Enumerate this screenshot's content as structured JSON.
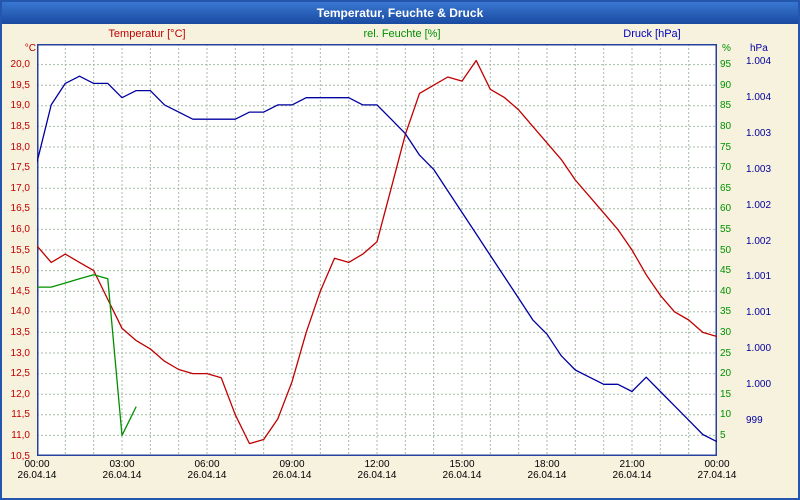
{
  "window": {
    "title": "Temperatur, Feuchte & Druck"
  },
  "header": {
    "temp_label": "Temperatur [°C]",
    "hum_label": "rel. Feuchte [%]",
    "pres_label": "Druck [hPa]",
    "temp_unit": "°C",
    "hum_unit": "%",
    "pres_unit": "hPa"
  },
  "colors": {
    "temperature": "#c00000",
    "humidity": "#009000",
    "pressure": "#0000a0",
    "titlebar": "#1a4aa0",
    "background": "#f7f2de",
    "plot_background": "#ffffff",
    "grid": "#a8bca8",
    "frame": "#26439b"
  },
  "chart_data": {
    "type": "line",
    "title": "Temperatur, Feuchte & Druck",
    "grid": true,
    "x_hours": [
      0,
      0.5,
      1,
      1.5,
      2,
      2.5,
      3,
      3.5,
      4,
      4.5,
      5,
      5.5,
      6,
      6.5,
      7,
      7.5,
      8,
      8.5,
      9,
      9.5,
      10,
      10.5,
      11,
      11.5,
      12,
      12.5,
      13,
      13.5,
      14,
      14.5,
      15,
      15.5,
      16,
      16.5,
      17,
      17.5,
      18,
      18.5,
      19,
      19.5,
      20,
      20.5,
      21,
      21.5,
      22,
      22.5,
      23,
      23.5,
      24
    ],
    "axis_ranges": {
      "temp": [
        10.5,
        20.5
      ],
      "humidity": [
        0,
        100
      ],
      "pressure": [
        999,
        1004.75
      ],
      "x": [
        0,
        24
      ]
    },
    "axes": {
      "temp": {
        "unit": "°C",
        "color": "#c00000",
        "ticks": [
          {
            "label": "20,0",
            "value": 20.0
          },
          {
            "label": "19,5",
            "value": 19.5
          },
          {
            "label": "19,0",
            "value": 19.0
          },
          {
            "label": "18,5",
            "value": 18.5
          },
          {
            "label": "18,0",
            "value": 18.0
          },
          {
            "label": "17,5",
            "value": 17.5
          },
          {
            "label": "17,0",
            "value": 17.0
          },
          {
            "label": "16,5",
            "value": 16.5
          },
          {
            "label": "16,0",
            "value": 16.0
          },
          {
            "label": "15,5",
            "value": 15.5
          },
          {
            "label": "15,0",
            "value": 15.0
          },
          {
            "label": "14,5",
            "value": 14.5
          },
          {
            "label": "14,0",
            "value": 14.0
          },
          {
            "label": "13,5",
            "value": 13.5
          },
          {
            "label": "13,0",
            "value": 13.0
          },
          {
            "label": "12,5",
            "value": 12.5
          },
          {
            "label": "12,0",
            "value": 12.0
          },
          {
            "label": "11,5",
            "value": 11.5
          },
          {
            "label": "11,0",
            "value": 11.0
          },
          {
            "label": "10,5",
            "value": 10.5
          }
        ]
      },
      "humidity": {
        "unit": "%",
        "color": "#009000",
        "ticks": [
          {
            "label": "95",
            "value": 95
          },
          {
            "label": "90",
            "value": 90
          },
          {
            "label": "85",
            "value": 85
          },
          {
            "label": "80",
            "value": 80
          },
          {
            "label": "75",
            "value": 75
          },
          {
            "label": "70",
            "value": 70
          },
          {
            "label": "65",
            "value": 65
          },
          {
            "label": "60",
            "value": 60
          },
          {
            "label": "55",
            "value": 55
          },
          {
            "label": "50",
            "value": 50
          },
          {
            "label": "45",
            "value": 45
          },
          {
            "label": "40",
            "value": 40
          },
          {
            "label": "35",
            "value": 35
          },
          {
            "label": "30",
            "value": 30
          },
          {
            "label": "25",
            "value": 25
          },
          {
            "label": "20",
            "value": 20
          },
          {
            "label": "15",
            "value": 15
          },
          {
            "label": "10",
            "value": 10
          },
          {
            "label": "5",
            "value": 5
          }
        ]
      },
      "pressure": {
        "unit": "hPa",
        "color": "#0000a0",
        "ticks": [
          {
            "label": "1.004",
            "value": 1004.5
          },
          {
            "label": "1.004",
            "value": 1004
          },
          {
            "label": "1.003",
            "value": 1003.5
          },
          {
            "label": "1.003",
            "value": 1003
          },
          {
            "label": "1.002",
            "value": 1002.5
          },
          {
            "label": "1.002",
            "value": 1002
          },
          {
            "label": "1.001",
            "value": 1001.5
          },
          {
            "label": "1.001",
            "value": 1001
          },
          {
            "label": "1.000",
            "value": 1000.5
          },
          {
            "label": "1.000",
            "value": 1000
          },
          {
            "label": "999",
            "value": 999.5
          }
        ]
      },
      "x": {
        "ticks": [
          {
            "time": "00:00",
            "date": "26.04.14",
            "hour": 0
          },
          {
            "time": "03:00",
            "date": "26.04.14",
            "hour": 3
          },
          {
            "time": "06:00",
            "date": "26.04.14",
            "hour": 6
          },
          {
            "time": "09:00",
            "date": "26.04.14",
            "hour": 9
          },
          {
            "time": "12:00",
            "date": "26.04.14",
            "hour": 12
          },
          {
            "time": "15:00",
            "date": "26.04.14",
            "hour": 15
          },
          {
            "time": "18:00",
            "date": "26.04.14",
            "hour": 18
          },
          {
            "time": "21:00",
            "date": "26.04.14",
            "hour": 21
          },
          {
            "time": "00:00",
            "date": "27.04.14",
            "hour": 24
          }
        ]
      }
    },
    "series": [
      {
        "id": "temperature",
        "name": "Temperatur [°C]",
        "axis": "temp",
        "color": "#c00000",
        "values": [
          15.6,
          15.2,
          15.4,
          15.2,
          15.0,
          14.3,
          13.6,
          13.3,
          13.1,
          12.8,
          12.6,
          12.5,
          12.5,
          12.4,
          11.5,
          10.8,
          10.9,
          11.4,
          12.3,
          13.5,
          14.5,
          15.3,
          15.2,
          15.4,
          15.7,
          17.0,
          18.3,
          19.3,
          19.5,
          19.7,
          19.6,
          20.1,
          19.4,
          19.2,
          18.9,
          18.5,
          18.1,
          17.7,
          17.2,
          16.8,
          16.4,
          16.0,
          15.5,
          14.9,
          14.4,
          14.0,
          13.8,
          13.5,
          13.4
        ]
      },
      {
        "id": "humidity",
        "name": "rel. Feuchte [%]",
        "axis": "humidity",
        "color": "#009000",
        "values": [
          41,
          41,
          42,
          43,
          44,
          43,
          5,
          12,
          null,
          null,
          null,
          null,
          null,
          null,
          null,
          null,
          null,
          null,
          null,
          null,
          null,
          null,
          null,
          null,
          null,
          null,
          null,
          null,
          null,
          null,
          null,
          null,
          null,
          null,
          null,
          null,
          null,
          null,
          null,
          null,
          null,
          null,
          null,
          null,
          null,
          null,
          null,
          null,
          null
        ]
      },
      {
        "id": "pressure",
        "name": "Druck [hPa]",
        "axis": "pressure",
        "color": "#0000a0",
        "values": [
          1003.1,
          1003.9,
          1004.2,
          1004.3,
          1004.2,
          1004.2,
          1004.0,
          1004.1,
          1004.1,
          1003.9,
          1003.8,
          1003.7,
          1003.7,
          1003.7,
          1003.7,
          1003.8,
          1003.8,
          1003.9,
          1003.9,
          1004.0,
          1004.0,
          1004.0,
          1004.0,
          1003.9,
          1003.9,
          1003.7,
          1003.5,
          1003.2,
          1003.0,
          1002.7,
          1002.4,
          1002.1,
          1001.8,
          1001.5,
          1001.2,
          1000.9,
          1000.7,
          1000.4,
          1000.2,
          1000.1,
          1000.0,
          1000.0,
          999.9,
          1000.1,
          999.9,
          999.7,
          999.5,
          999.3,
          999.2
        ]
      }
    ]
  }
}
